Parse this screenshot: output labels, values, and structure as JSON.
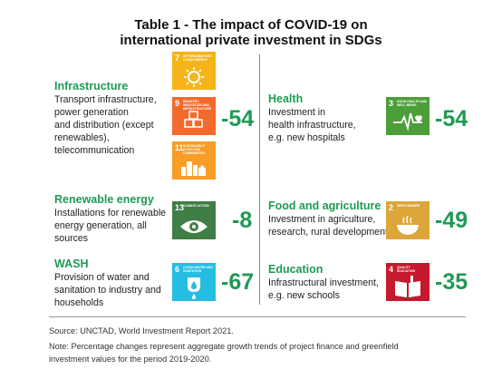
{
  "title": {
    "line1": "Table 1 - The impact of COVID-19 on",
    "line2": "international private investment in SDGs"
  },
  "sections": {
    "infrastructure": {
      "title": "Infrastructure",
      "desc": [
        "Transport infrastructure,",
        "power generation",
        "and distribution (except",
        "renewables),",
        "telecommunication"
      ],
      "value": "-54",
      "sdgs": [
        {
          "number": "7",
          "label": "Affordable and clean energy",
          "color": "#f4b41a",
          "icon": "sun-icon"
        },
        {
          "number": "9",
          "label": "Industry, innovation and infrastructure",
          "color": "#f36b2c",
          "icon": "cubes-icon"
        },
        {
          "number": "11",
          "label": "Sustainable cities and communities",
          "color": "#f99d26",
          "icon": "city-icon"
        }
      ]
    },
    "renewable": {
      "title": "Renewable energy",
      "desc": [
        "Installations for renewable",
        "energy generation, all",
        "sources"
      ],
      "value": "-8",
      "sdgs": [
        {
          "number": "13",
          "label": "Climate action",
          "color": "#3f7e44",
          "icon": "eye-globe-icon"
        }
      ]
    },
    "wash": {
      "title": "WASH",
      "desc": [
        "Provision of water and",
        "sanitation to industry and",
        "households"
      ],
      "value": "-67",
      "sdgs": [
        {
          "number": "6",
          "label": "Clean water and sanitation",
          "color": "#26bde2",
          "icon": "water-drop-icon"
        }
      ]
    },
    "health": {
      "title": "Health",
      "desc": [
        "Investment in",
        "health infrastructure,",
        "e.g. new hospitals"
      ],
      "value": "-54",
      "sdgs": [
        {
          "number": "3",
          "label": "Good health and well-being",
          "color": "#4c9f38",
          "icon": "heartbeat-icon"
        }
      ]
    },
    "food": {
      "title": "Food and agriculture",
      "desc": [
        "Investment in agriculture,",
        "research, rural development"
      ],
      "value": "-49",
      "sdgs": [
        {
          "number": "2",
          "label": "Zero hunger",
          "color": "#dda63a",
          "icon": "bowl-icon"
        }
      ]
    },
    "education": {
      "title": "Education",
      "desc": [
        "Infrastructural investment,",
        "e.g. new schools"
      ],
      "value": "-35",
      "sdgs": [
        {
          "number": "4",
          "label": "Quality education",
          "color": "#c5192d",
          "icon": "book-icon"
        }
      ]
    }
  },
  "footer": {
    "source": "Source: UNCTAD, World Investment Report 2021.",
    "note_line1": "Note: Percentage changes represent aggregate growth trends of project finance and greenfield",
    "note_line2": "investment values for the period 2019-2020."
  },
  "colors": {
    "accent_green": "#1f9a54",
    "text": "#222222",
    "divider": "#8a8a8a"
  }
}
